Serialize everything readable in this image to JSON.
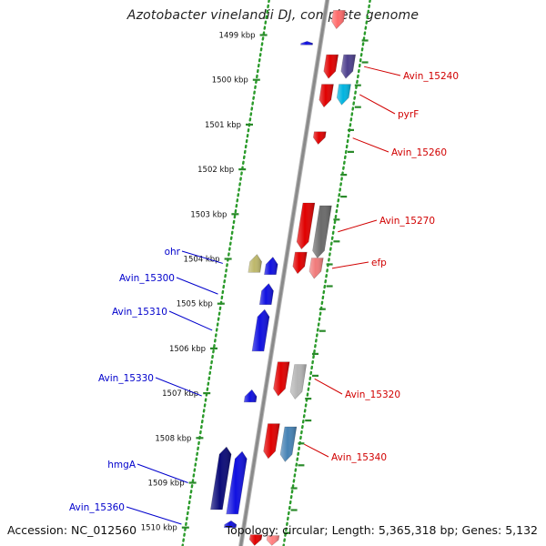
{
  "title": "Azotobacter vinelandii DJ, complete genome",
  "footer": {
    "accession": "Accession: NC_012560",
    "summary": "Topology: circular; Length: 5,365,318 bp; Genes: 5,132"
  },
  "colors": {
    "backbone": "#8a8a8a",
    "dots": "#2a9a2a",
    "ticks": "#2a8a2a",
    "fwd_label": "#d10000",
    "rev_label": "#0000cc"
  },
  "scale": {
    "ticks": [
      {
        "label": "1499 kbp",
        "kb": 1499
      },
      {
        "label": "1500 kbp",
        "kb": 1500
      },
      {
        "label": "1501 kbp",
        "kb": 1501
      },
      {
        "label": "1502 kbp",
        "kb": 1502
      },
      {
        "label": "1503 kbp",
        "kb": 1503
      },
      {
        "label": "1504 kbp",
        "kb": 1504
      },
      {
        "label": "1505 kbp",
        "kb": 1505
      },
      {
        "label": "1506 kbp",
        "kb": 1506
      },
      {
        "label": "1507 kbp",
        "kb": 1507
      },
      {
        "label": "1508 kbp",
        "kb": 1508
      },
      {
        "label": "1509 kbp",
        "kb": 1509
      },
      {
        "label": "1510 kbp",
        "kb": 1510
      }
    ]
  },
  "genes": [
    {
      "name": "",
      "strand": "+",
      "lane": 1,
      "start": 1498.45,
      "end": 1498.86,
      "color": "#ff6a6a"
    },
    {
      "name": "",
      "strand": "-",
      "lane": 1,
      "start": 1499.14,
      "end": 1499.22,
      "color": "#1010e0"
    },
    {
      "name": "Avin_15240",
      "strand": "+",
      "lane": 1,
      "start": 1499.44,
      "end": 1499.97,
      "color": "#e00000"
    },
    {
      "name": "",
      "strand": "+",
      "lane": 2,
      "start": 1499.44,
      "end": 1499.97,
      "color": "#4c3f8c"
    },
    {
      "name": "pyrF",
      "strand": "+",
      "lane": 2,
      "start": 1500.1,
      "end": 1500.56,
      "color": "#00b4e0"
    },
    {
      "name": "",
      "strand": "+",
      "lane": 1,
      "start": 1500.1,
      "end": 1500.61,
      "color": "#e00000"
    },
    {
      "name": "Avin_15260",
      "strand": "+",
      "lane": 1,
      "start": 1501.16,
      "end": 1501.44,
      "color": "#e00000"
    },
    {
      "name": "",
      "strand": "+",
      "lane": 1,
      "start": 1502.75,
      "end": 1503.78,
      "color": "#e00000"
    },
    {
      "name": "Avin_15270",
      "strand": "+",
      "lane": 2,
      "start": 1502.81,
      "end": 1503.98,
      "color": "#6a6a6a"
    },
    {
      "name": "",
      "strand": "+",
      "lane": 1,
      "start": 1503.85,
      "end": 1504.33,
      "color": "#e00000"
    },
    {
      "name": "efp",
      "strand": "+",
      "lane": 2,
      "start": 1503.98,
      "end": 1504.44,
      "color": "#f07a7a"
    },
    {
      "name": "ohr",
      "strand": "-",
      "lane": 2,
      "start": 1503.9,
      "end": 1504.3,
      "color": "#bdb76b"
    },
    {
      "name": "",
      "strand": "-",
      "lane": 1,
      "start": 1503.96,
      "end": 1504.35,
      "color": "#1010e0"
    },
    {
      "name": "Avin_15300",
      "strand": "-",
      "lane": 1,
      "start": 1504.55,
      "end": 1505.02,
      "color": "#1010e0"
    },
    {
      "name": "Avin_15310",
      "strand": "-",
      "lane": 1,
      "start": 1505.13,
      "end": 1506.06,
      "color": "#1010e0"
    },
    {
      "name": "Avin_15320",
      "strand": "+",
      "lane": 1,
      "start": 1506.3,
      "end": 1507.06,
      "color": "#e00000"
    },
    {
      "name": "",
      "strand": "+",
      "lane": 2,
      "start": 1506.36,
      "end": 1507.13,
      "color": "#b4b4b4"
    },
    {
      "name": "Avin_15330",
      "strand": "-",
      "lane": 1,
      "start": 1506.92,
      "end": 1507.2,
      "color": "#1010e0"
    },
    {
      "name": "",
      "strand": "+",
      "lane": 1,
      "start": 1507.68,
      "end": 1508.46,
      "color": "#e00000"
    },
    {
      "name": "Avin_15340",
      "strand": "+",
      "lane": 2,
      "start": 1507.75,
      "end": 1508.53,
      "color": "#4682b4"
    },
    {
      "name": "",
      "strand": "-",
      "lane": 2,
      "start": 1508.2,
      "end": 1509.6,
      "color": "#0a0a78"
    },
    {
      "name": "hmgA",
      "strand": "-",
      "lane": 1,
      "start": 1508.3,
      "end": 1509.7,
      "color": "#1010e0"
    },
    {
      "name": "Avin_15360",
      "strand": "-",
      "lane": 1,
      "start": 1509.85,
      "end": 1510.0,
      "color": "#1010e0"
    },
    {
      "name": "",
      "strand": "+",
      "lane": 1,
      "start": 1510.16,
      "end": 1510.4,
      "color": "#e00000"
    },
    {
      "name": "",
      "strand": "+",
      "lane": 2,
      "start": 1510.18,
      "end": 1510.4,
      "color": "#ff8080"
    }
  ]
}
